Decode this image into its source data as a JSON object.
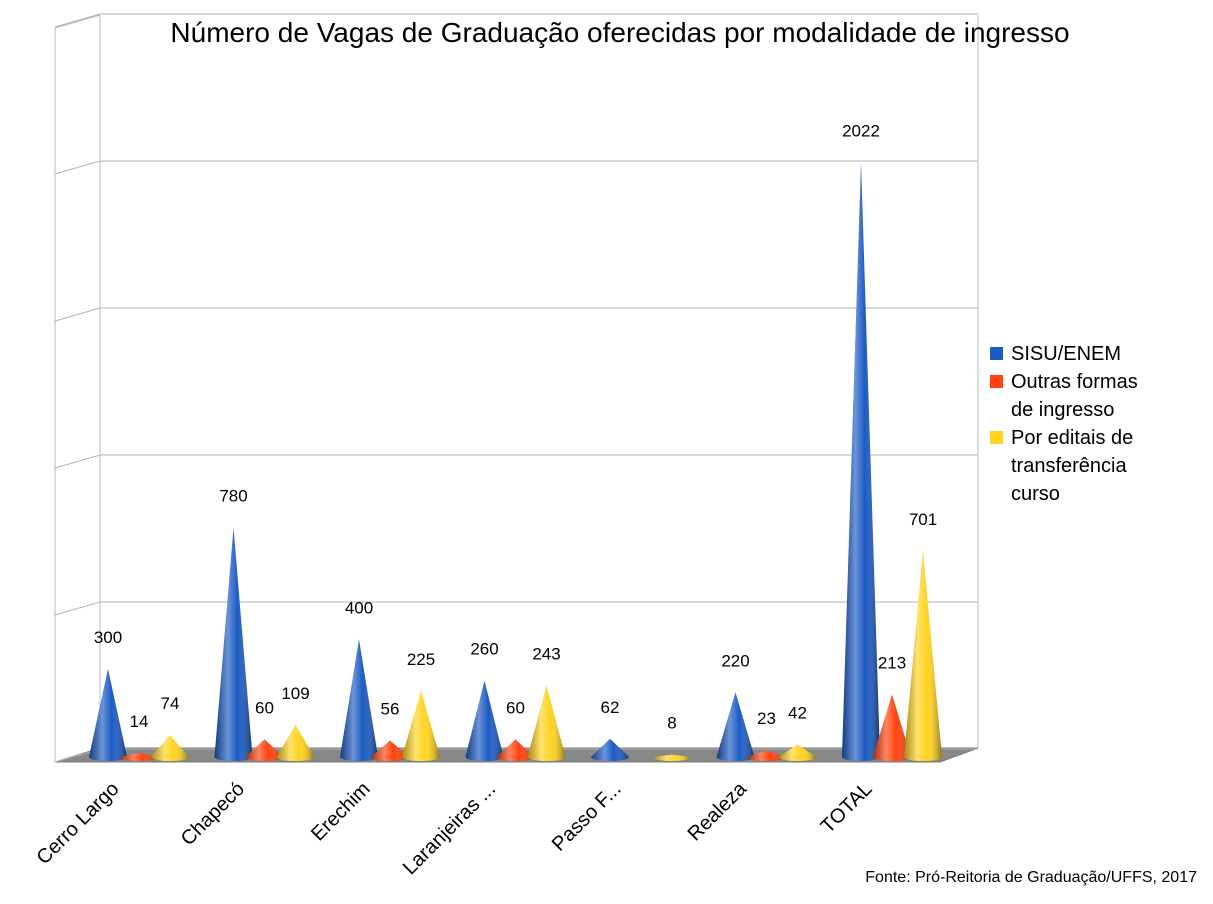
{
  "chart_data": {
    "type": "cone3d",
    "title": "Número de Vagas de Graduação oferecidas por modalidade de ingresso",
    "source": "Fonte: Pró-Reitoria de Graduação/UFFS, 2017",
    "categories": [
      "Cerro Largo",
      "Chapecó",
      "Erechim",
      "Laranjeiras ...",
      "Passo F...",
      "Realeza",
      "TOTAL"
    ],
    "series": [
      {
        "name": "SISU/ENEM",
        "color": "#1c5bc4",
        "values": [
          300,
          780,
          400,
          260,
          62,
          220,
          2022
        ]
      },
      {
        "name": "Outras formas de  ingresso",
        "color": "#ff420e",
        "values": [
          14,
          60,
          56,
          60,
          null,
          23,
          213
        ]
      },
      {
        "name": "Por editais de transferência curso",
        "color": "#ffd320",
        "values": [
          74,
          109,
          225,
          243,
          8,
          42,
          701
        ]
      }
    ],
    "ylim": [
      0,
      2500
    ],
    "yticks": [
      0,
      500,
      1000,
      1500,
      2000,
      2500
    ],
    "grid": true,
    "legend": "right"
  }
}
